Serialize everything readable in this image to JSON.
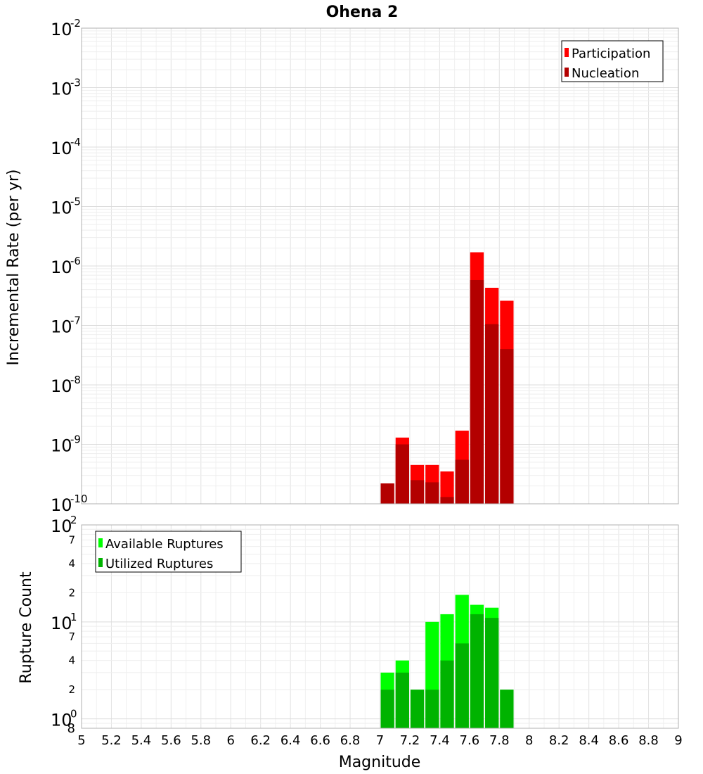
{
  "chart_data": [
    {
      "type": "bar",
      "title": "Ohena 2",
      "xlabel": "",
      "ylabel": "Incremental Rate (per yr)",
      "yscale": "log",
      "ylim": [
        1e-10,
        0.01
      ],
      "xlim": [
        5,
        9
      ],
      "grid": true,
      "legend_position": "top-right",
      "x": [
        7.05,
        7.15,
        7.25,
        7.35,
        7.45,
        7.55,
        7.65,
        7.75,
        7.85
      ],
      "series": [
        {
          "name": "Participation",
          "color": "#ff0000",
          "values": [
            2.2e-10,
            1.3e-09,
            4.5e-10,
            4.5e-10,
            3.5e-10,
            1.7e-09,
            1.7e-06,
            4.3e-07,
            2.6e-07
          ]
        },
        {
          "name": "Nucleation",
          "color": "#b30000",
          "values": [
            2.2e-10,
            1e-09,
            2.5e-10,
            2.3e-10,
            1.3e-10,
            5.5e-10,
            5.8e-07,
            1.05e-07,
            4e-08
          ]
        }
      ],
      "y_ticks": [
        {
          "base": "10",
          "exp": "-2"
        },
        {
          "base": "10",
          "exp": "-3"
        },
        {
          "base": "10",
          "exp": "-4"
        },
        {
          "base": "10",
          "exp": "-5"
        },
        {
          "base": "10",
          "exp": "-6"
        },
        {
          "base": "10",
          "exp": "-7"
        },
        {
          "base": "10",
          "exp": "-8"
        },
        {
          "base": "10",
          "exp": "-9"
        },
        {
          "base": "10",
          "exp": "-10"
        }
      ]
    },
    {
      "type": "bar",
      "title": "",
      "xlabel": "Magnitude",
      "ylabel": "Rupture Count",
      "yscale": "log",
      "ylim": [
        0.8,
        100
      ],
      "xlim": [
        5,
        9
      ],
      "grid": true,
      "legend_position": "top-left",
      "x": [
        7.05,
        7.15,
        7.25,
        7.35,
        7.45,
        7.55,
        7.65,
        7.75,
        7.85
      ],
      "series": [
        {
          "name": "Available Ruptures",
          "color": "#00ff00",
          "values": [
            3,
            4,
            2,
            10,
            12,
            19,
            15,
            14,
            2
          ]
        },
        {
          "name": "Utilized Ruptures",
          "color": "#00b300",
          "values": [
            2,
            3,
            2,
            2,
            4,
            6,
            12,
            11,
            2
          ]
        }
      ],
      "y_ticks": [
        {
          "value": 100,
          "base": "10",
          "exp": "2"
        },
        {
          "value": 10,
          "base": "10",
          "exp": "1"
        },
        {
          "value": 1,
          "base": "10",
          "exp": "0"
        }
      ],
      "y_minor_labels": [
        {
          "value": 70,
          "label": "7"
        },
        {
          "value": 40,
          "label": "4"
        },
        {
          "value": 20,
          "label": "2"
        },
        {
          "value": 7,
          "label": "7"
        },
        {
          "value": 4,
          "label": "4"
        },
        {
          "value": 2,
          "label": "2"
        },
        {
          "value": 0.8,
          "label": "8"
        }
      ]
    }
  ],
  "x_ticks": [
    "5",
    "5.2",
    "5.4",
    "5.6",
    "5.8",
    "6",
    "6.2",
    "6.4",
    "6.6",
    "6.8",
    "7",
    "7.2",
    "7.4",
    "7.6",
    "7.8",
    "8",
    "8.2",
    "8.4",
    "8.6",
    "8.8",
    "9"
  ]
}
